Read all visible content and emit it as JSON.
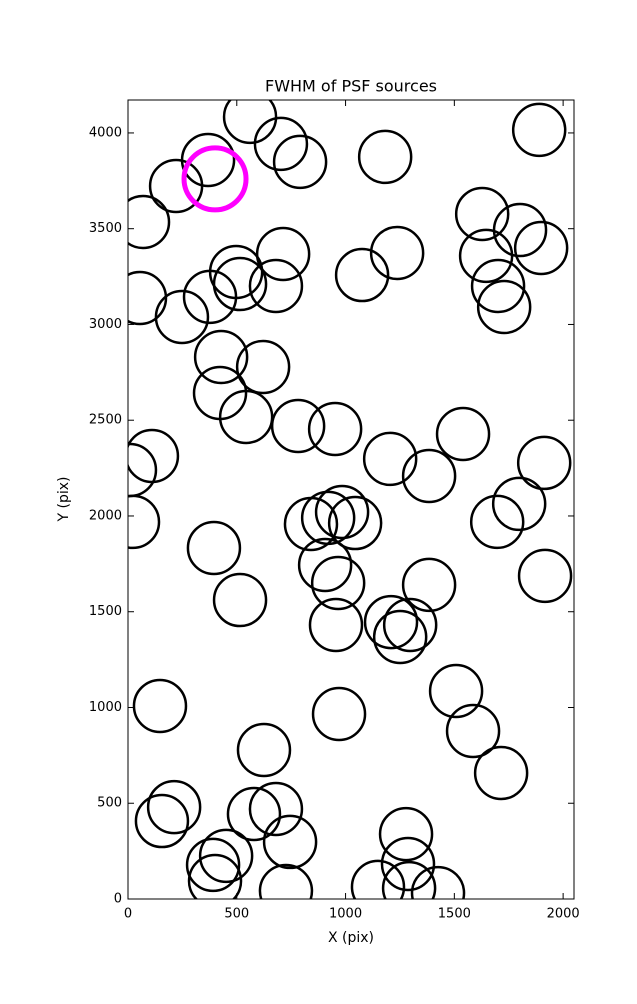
{
  "chart_data": {
    "type": "scatter",
    "title": "FWHM of PSF sources",
    "xlabel": "X (pix)",
    "ylabel": "Y (pix)",
    "xlim": [
      0,
      2050
    ],
    "ylim": [
      0,
      4172
    ],
    "xticks": [
      0,
      500,
      1000,
      1500,
      2000
    ],
    "yticks": [
      0,
      500,
      1000,
      1500,
      2000,
      2500,
      3000,
      3500,
      4000
    ],
    "series": [
      {
        "color": "#000000",
        "x": [
          561,
          703,
          791,
          368,
          221,
          69,
          1182,
          1890,
          1628,
          1802,
          1899,
          1646,
          1701,
          1729,
          1237,
          1076,
          713,
          680,
          497,
          515,
          377,
          55,
          248,
          428,
          621,
          423,
          543,
          782,
          952,
          1540,
          110,
          9,
          1205,
          1384,
          1913,
          1798,
          1697,
          984,
          920,
          1044,
          841,
          23,
          395,
          906,
          966,
          1384,
          1917,
          515,
          1209,
          1297,
          1251,
          956,
          1508,
          147,
          970,
          1586,
          625,
          1715,
          212,
          156,
          579,
          680,
          745,
          451,
          391,
          400,
          1278,
          1287,
          1292,
          1149,
          1425,
          726
        ],
        "values": [
          4084,
          3943,
          3849,
          3859,
          3723,
          3535,
          3875,
          4016,
          3577,
          3493,
          3399,
          3358,
          3201,
          3091,
          3373,
          3258,
          3368,
          3201,
          3274,
          3211,
          3144,
          3138,
          3039,
          2830,
          2778,
          2642,
          2517,
          2470,
          2454,
          2428,
          2313,
          2240,
          2298,
          2209,
          2277,
          2063,
          1969,
          2021,
          1990,
          1963,
          1958,
          1969,
          1833,
          1744,
          1650,
          1640,
          1687,
          1561,
          1446,
          1431,
          1368,
          1431,
          1086,
          1008,
          966,
          877,
          778,
          658,
          480,
          407,
          444,
          470,
          298,
          225,
          178,
          94,
          339,
          183,
          57,
          63,
          31,
          42
        ]
      },
      {
        "color": "#ff00ff",
        "x": [
          400
        ],
        "values": [
          3760
        ]
      }
    ]
  }
}
